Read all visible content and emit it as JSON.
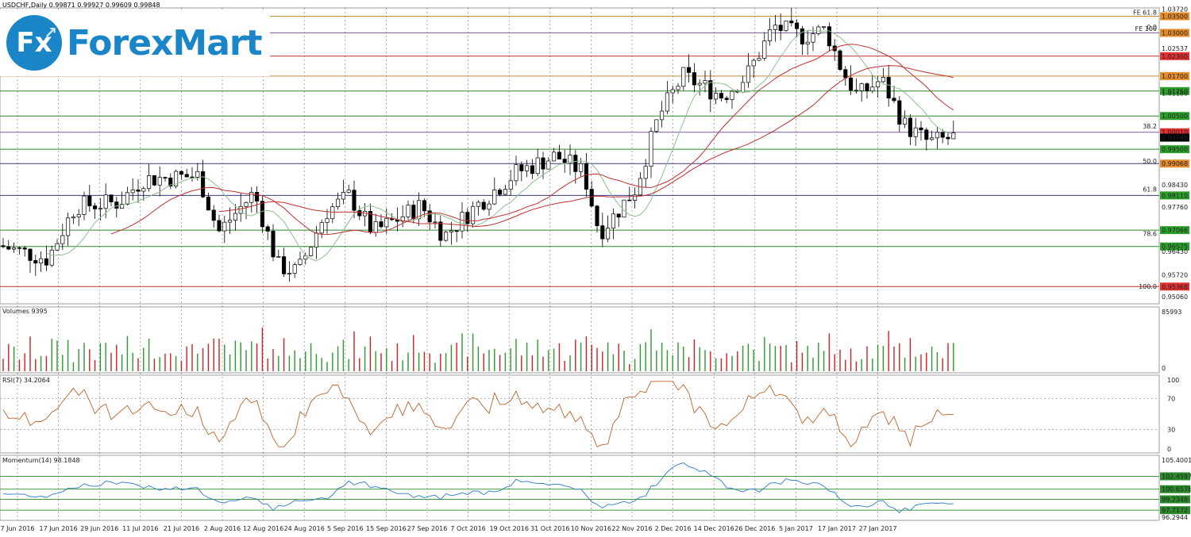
{
  "header": {
    "title": "USDCHF,Daily",
    "ohlc": "0.99871 0.99927 0.99609 0.99848"
  },
  "logo": {
    "mark": "Fx",
    "text": "ForexMart"
  },
  "chart_data": [
    {
      "type": "candlestick",
      "title": "USDCHF,Daily",
      "ylim": [
        0.9485,
        1.0375
      ],
      "price_ticks": [
        "1.03720",
        "1.02537",
        "1.01180",
        "0.98430",
        "0.97760",
        "0.96430",
        "0.95720",
        "0.95060"
      ],
      "current_price": "0.99848",
      "x_tick_labels": [
        "7 Jun 2016",
        "17 Jun 2016",
        "29 Jun 2016",
        "11 Jul 2016",
        "21 Jul 2016",
        "2 Aug 2016",
        "12 Aug 2016",
        "24 Aug 2016",
        "5 Sep 2016",
        "15 Sep 2016",
        "27 Sep 2016",
        "7 Oct 2016",
        "19 Oct 2016",
        "31 Oct 2016",
        "10 Nov 2016",
        "22 Nov 2016",
        "2 Dec 2016",
        "14 Dec 2016",
        "26 Dec 2016",
        "5 Jan 2017",
        "17 Jan 2017",
        "27 Jan 2017"
      ],
      "levels": [
        {
          "price": 1.035,
          "label": "1.03500",
          "color": "#e58b2a",
          "band": "#c58b3a"
        },
        {
          "price": 1.03,
          "label": "1.03000",
          "color": "#e58b2a",
          "band": "#7b5aa0"
        },
        {
          "price": 1.023,
          "label": "1.02300",
          "color": "#e03030",
          "band": "#c03030"
        },
        {
          "price": 1.017,
          "label": "1.01700",
          "color": "#e58b2a",
          "band": "#c58b3a"
        },
        {
          "price": 1.0125,
          "label": "1.01250",
          "color": "#2aa02a",
          "band": "#2a8a2a"
        },
        {
          "price": 1.005,
          "label": "1.00500",
          "color": "#2aa02a",
          "band": "#2a8a2a"
        },
        {
          "price": 1.0001,
          "label": "1.00010",
          "color": "#e03030",
          "band": "#7b5aa0"
        },
        {
          "price": 0.995,
          "label": "0.99500",
          "color": "#2aa02a",
          "band": "#2a8a2a"
        },
        {
          "price": 0.99068,
          "label": "0.99068",
          "color": "#e58b2a",
          "band": "#3a3a8a"
        },
        {
          "price": 0.9811,
          "label": "0.98110",
          "color": "#2aa02a",
          "band": "#3a3a8a"
        },
        {
          "price": 0.97066,
          "label": "0.97066",
          "color": "#2aa02a",
          "band": "#2a8a2a"
        },
        {
          "price": 0.96575,
          "label": "0.96575",
          "color": "#2aa02a",
          "band": "#2a8a2a"
        },
        {
          "price": 0.95368,
          "label": "0.95368",
          "color": "#e03030",
          "band": "#c03030"
        }
      ],
      "fib_labels": [
        {
          "text": "FE 61.8",
          "price": 1.0362
        },
        {
          "text": "0.0",
          "price": 1.0318
        },
        {
          "text": "FE 100",
          "price": 1.0313
        },
        {
          "text": "38.2",
          "price": 1.002
        },
        {
          "text": "50.0",
          "price": 0.9915
        },
        {
          "text": "61.8",
          "price": 0.983
        },
        {
          "text": "78.6",
          "price": 0.9696
        },
        {
          "text": "100.0",
          "price": 0.9538
        }
      ]
    },
    {
      "type": "bar",
      "title": "Volumes 9395",
      "ylim": [
        0,
        85993
      ],
      "tick_labels": [
        "85993",
        "0"
      ]
    },
    {
      "type": "line",
      "title": "RSI(7) 34.2064",
      "ylim": [
        0,
        100
      ],
      "tick_labels": [
        "100",
        "70",
        "30",
        "0"
      ]
    },
    {
      "type": "line",
      "title": "Momentum(14) 98.1848",
      "ylim": [
        96.2944,
        105.4001
      ],
      "tick_labels": [
        "105.4001",
        "102.4597",
        "100.6576",
        "99.2348",
        "97.7172",
        "96.2944"
      ]
    }
  ]
}
